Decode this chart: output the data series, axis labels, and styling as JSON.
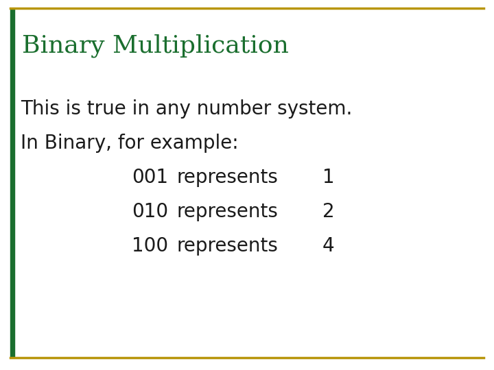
{
  "title": "Binary Multiplication",
  "title_color": "#1a6e2e",
  "title_fontsize": 26,
  "body_color": "#1a1a1a",
  "body_fontsize": 20,
  "background_color": "#ffffff",
  "border_color": "#b8960c",
  "left_bar_color": "#1a6e2e",
  "line1": "This is true in any number system.",
  "line2": "In Binary, for example:",
  "rows": [
    {
      "binary": "001",
      "word": "represents",
      "value": "1"
    },
    {
      "binary": "010",
      "word": "represents",
      "value": "2"
    },
    {
      "binary": "100",
      "word": "represents",
      "value": "4"
    }
  ]
}
